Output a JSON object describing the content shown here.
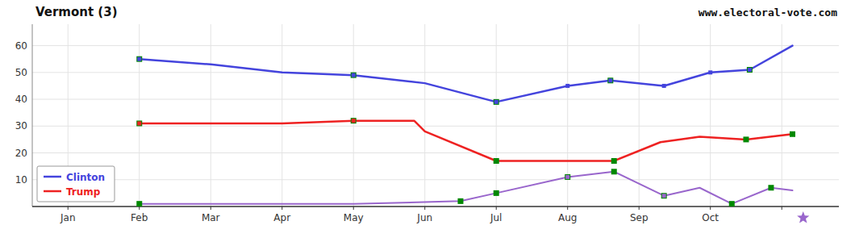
{
  "chart_data": {
    "type": "line",
    "title": "Vermont (3)",
    "annotations": [
      {
        "text": "www.electoral-vote.com"
      }
    ],
    "xlim": [
      -0.5,
      10.8
    ],
    "xticks": [
      {
        "value": 0,
        "label": "Jan"
      },
      {
        "value": 1,
        "label": "Feb"
      },
      {
        "value": 2,
        "label": "Mar"
      },
      {
        "value": 3,
        "label": "Apr"
      },
      {
        "value": 4,
        "label": "May"
      },
      {
        "value": 5,
        "label": "Jun"
      },
      {
        "value": 6,
        "label": "Jul"
      },
      {
        "value": 7,
        "label": "Aug"
      },
      {
        "value": 8,
        "label": "Sep"
      },
      {
        "value": 9,
        "label": "Oct"
      },
      {
        "value": 10,
        "label": null
      }
    ],
    "ylim": [
      0,
      68
    ],
    "yticks": [
      10,
      20,
      30,
      40,
      50,
      60
    ],
    "grid": true,
    "legend": "lower left",
    "series": [
      {
        "name": "Clinton",
        "type": "line",
        "color": "#4444dd",
        "x": [
          1.0,
          2.0,
          3.0,
          4.0,
          5.0,
          6.0,
          7.0,
          7.6,
          8.35,
          9.0,
          9.55,
          10.15
        ],
        "values": [
          55,
          53,
          50,
          49,
          46,
          39,
          45,
          47,
          45,
          50,
          51,
          60
        ]
      },
      {
        "name": "Trump",
        "type": "line",
        "color": "#ee2222",
        "x": [
          1.0,
          2.0,
          3.0,
          4.0,
          4.85,
          5.0,
          6.0,
          7.65,
          8.3,
          8.85,
          9.5,
          10.15
        ],
        "values": [
          31,
          31,
          31,
          32,
          32,
          28,
          17,
          17,
          24,
          26,
          25,
          27
        ]
      },
      {
        "type": "line",
        "color": "#9966cc",
        "x": [
          1.0,
          2.0,
          3.0,
          4.0,
          5.5,
          6.0,
          7.0,
          7.65,
          8.35,
          8.85,
          9.3,
          9.85,
          10.15
        ],
        "values": [
          1,
          1,
          1,
          1,
          2,
          5,
          11,
          13,
          4,
          7,
          1,
          7,
          6
        ]
      },
      {
        "type": "scatter",
        "marker": "square",
        "color": "#008800",
        "x": [
          1.0,
          4.0,
          6.0,
          7.6,
          9.55
        ],
        "values": [
          55,
          49,
          39,
          47,
          51
        ]
      },
      {
        "type": "scatter",
        "marker": "square",
        "color": "#008800",
        "x": [
          1.0,
          4.0,
          6.0,
          7.65,
          9.5,
          10.15
        ],
        "values": [
          31,
          32,
          17,
          17,
          25,
          27
        ]
      },
      {
        "type": "scatter",
        "marker": "square",
        "color": "#008800",
        "x": [
          1.0,
          5.5,
          6.0,
          7.0,
          7.65,
          8.35,
          9.3,
          9.85
        ],
        "values": [
          1,
          2,
          5,
          11,
          13,
          4,
          1,
          7
        ]
      },
      {
        "type": "scatter",
        "marker": "square",
        "color": "#4444dd",
        "x": [
          1.0,
          4.0,
          6.0,
          7.0,
          7.6,
          8.35,
          9.0,
          9.55
        ],
        "values": [
          55,
          49,
          39,
          45,
          47,
          45,
          50,
          51
        ]
      },
      {
        "type": "scatter",
        "marker": "square",
        "color": "#ee2222",
        "x": [
          1.0,
          4.0
        ],
        "values": [
          31,
          32
        ]
      },
      {
        "type": "scatter",
        "marker": "square",
        "color": "#9966cc",
        "x": [
          7.0,
          8.35
        ],
        "values": [
          11,
          4
        ]
      }
    ],
    "election_marker": {
      "x": 10.3,
      "marker": "star",
      "color": "#9966cc"
    }
  }
}
